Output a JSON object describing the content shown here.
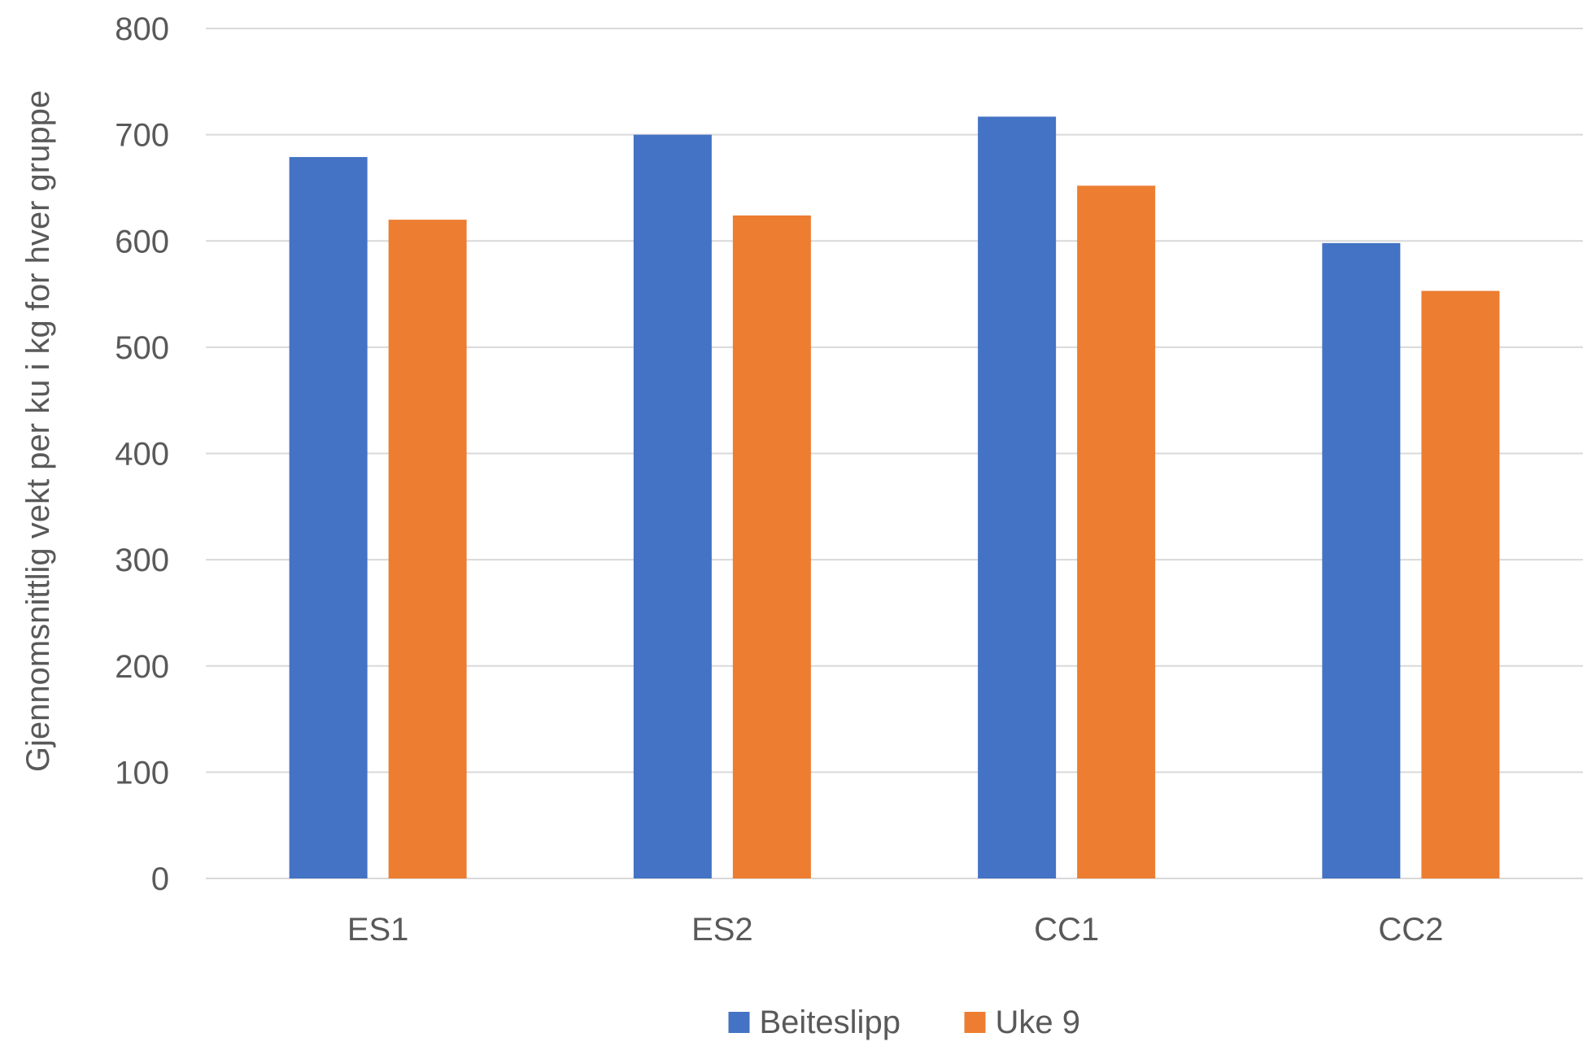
{
  "chart_data": {
    "type": "bar",
    "title": "",
    "xlabel": "",
    "ylabel": "Gjennomsnittlig vekt per ku i kg for hver gruppe",
    "categories": [
      "ES1",
      "ES2",
      "CC1",
      "CC2"
    ],
    "series": [
      {
        "name": "Beiteslipp",
        "values": [
          679,
          700,
          717,
          598
        ]
      },
      {
        "name": "Uke 9",
        "values": [
          620,
          624,
          652,
          553
        ]
      }
    ],
    "ylim": [
      0,
      800
    ],
    "yticks": [
      0,
      100,
      200,
      300,
      400,
      500,
      600,
      700,
      800
    ],
    "grid": true,
    "legend_position": "bottom",
    "colors": {
      "Beiteslipp": "#4472C4",
      "Uke 9": "#ED7D31",
      "grid": "#D9D9D9",
      "text": "#595959"
    }
  }
}
